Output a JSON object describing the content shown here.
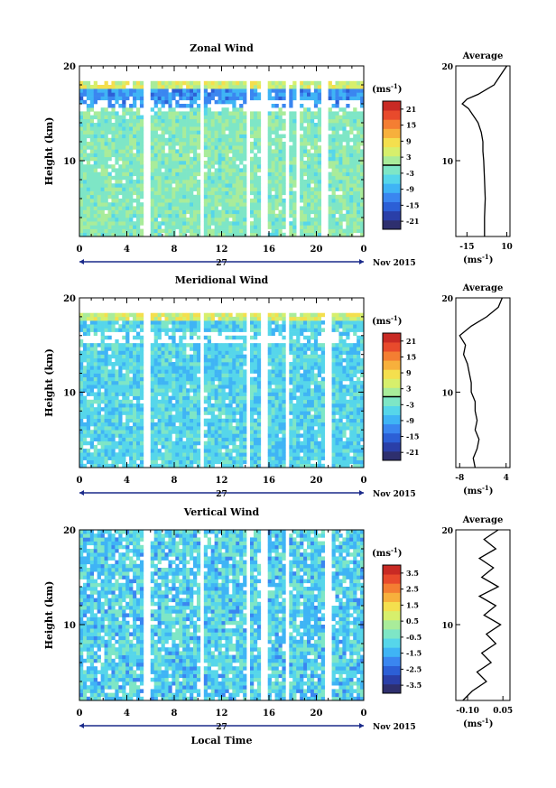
{
  "chart_data": [
    {
      "type": "heatmap",
      "title": "Zonal Wind",
      "ylabel": "Height (km)",
      "ylim": [
        2,
        20
      ],
      "y_ticks": [
        "10",
        "20"
      ],
      "xlim": [
        0,
        24
      ],
      "x_ticks": [
        "0",
        "4",
        "8",
        "12",
        "16",
        "20",
        "0"
      ],
      "date_label": "27",
      "month_label": "Nov 2015",
      "colorbar": {
        "unit": "(ms",
        "unit_sup": "-1",
        "unit_close": ")",
        "ticks": [
          "21",
          "15",
          "9",
          "3",
          "-3",
          "-9",
          "-15",
          "-21"
        ],
        "range": [
          -24,
          24
        ]
      },
      "average": {
        "title": "Average",
        "xlabel": "(ms",
        "xlabel_sup": "-1",
        "xlabel_close": ")",
        "x_ticks": [
          "-15",
          "10"
        ],
        "y_ticks": [
          "10",
          "20"
        ],
        "xlim": [
          -22,
          12
        ],
        "profile": [
          {
            "h": 2,
            "v": -4
          },
          {
            "h": 4,
            "v": -4
          },
          {
            "h": 6,
            "v": -3.5
          },
          {
            "h": 8,
            "v": -4
          },
          {
            "h": 10,
            "v": -4.5
          },
          {
            "h": 11,
            "v": -5
          },
          {
            "h": 12,
            "v": -5
          },
          {
            "h": 13,
            "v": -6
          },
          {
            "h": 14,
            "v": -8
          },
          {
            "h": 14.5,
            "v": -10
          },
          {
            "h": 15,
            "v": -12
          },
          {
            "h": 15.5,
            "v": -14
          },
          {
            "h": 16,
            "v": -18
          },
          {
            "h": 16.5,
            "v": -15
          },
          {
            "h": 17,
            "v": -8
          },
          {
            "h": 18,
            "v": 2
          },
          {
            "h": 19,
            "v": 6
          },
          {
            "h": 20,
            "v": 10
          }
        ]
      }
    },
    {
      "type": "heatmap",
      "title": "Meridional Wind",
      "ylabel": "Height (km)",
      "ylim": [
        2,
        20
      ],
      "y_ticks": [
        "10",
        "20"
      ],
      "xlim": [
        0,
        24
      ],
      "x_ticks": [
        "0",
        "4",
        "8",
        "12",
        "16",
        "20",
        "0"
      ],
      "date_label": "27",
      "month_label": "Nov 2015",
      "colorbar": {
        "unit": "(ms",
        "unit_sup": "-1",
        "unit_close": ")",
        "ticks": [
          "21",
          "15",
          "9",
          "3",
          "-3",
          "-9",
          "-15",
          "-21"
        ],
        "range": [
          -24,
          24
        ]
      },
      "average": {
        "title": "Average",
        "xlabel": "(ms",
        "xlabel_sup": "-1",
        "xlabel_close": ")",
        "x_ticks": [
          "-8",
          "4"
        ],
        "y_ticks": [
          "10",
          "20"
        ],
        "xlim": [
          -9,
          5
        ],
        "profile": [
          {
            "h": 2,
            "v": -4
          },
          {
            "h": 3,
            "v": -4.5
          },
          {
            "h": 4,
            "v": -3.5
          },
          {
            "h": 5,
            "v": -3
          },
          {
            "h": 6,
            "v": -4
          },
          {
            "h": 7,
            "v": -3.5
          },
          {
            "h": 8,
            "v": -4
          },
          {
            "h": 9,
            "v": -4
          },
          {
            "h": 10,
            "v": -5
          },
          {
            "h": 11,
            "v": -5
          },
          {
            "h": 12,
            "v": -5.5
          },
          {
            "h": 13,
            "v": -6
          },
          {
            "h": 14,
            "v": -7
          },
          {
            "h": 15,
            "v": -6.5
          },
          {
            "h": 16,
            "v": -8
          },
          {
            "h": 17,
            "v": -5
          },
          {
            "h": 18,
            "v": -1
          },
          {
            "h": 19,
            "v": 2
          },
          {
            "h": 20,
            "v": 3
          }
        ]
      }
    },
    {
      "type": "heatmap",
      "title": "Vertical Wind",
      "ylabel": "Height (km)",
      "xlabel": "Local Time",
      "ylim": [
        2,
        20
      ],
      "y_ticks": [
        "10",
        "20"
      ],
      "xlim": [
        0,
        24
      ],
      "x_ticks": [
        "0",
        "4",
        "8",
        "12",
        "16",
        "20",
        "0"
      ],
      "date_label": "27",
      "month_label": "Nov 2015",
      "colorbar": {
        "unit": "(ms",
        "unit_sup": "-1",
        "unit_close": ")",
        "ticks": [
          "3.5",
          "2.5",
          "1.5",
          "0.5",
          "-0.5",
          "-1.5",
          "-2.5",
          "-3.5"
        ],
        "range": [
          -4,
          4
        ]
      },
      "average": {
        "title": "Average",
        "xlabel": "(ms",
        "xlabel_sup": "-1",
        "xlabel_close": ")",
        "x_ticks": [
          "-0.10",
          "0.05"
        ],
        "y_ticks": [
          "10",
          "20"
        ],
        "xlim": [
          -0.15,
          0.08
        ],
        "profile": [
          {
            "h": 2,
            "v": -0.12
          },
          {
            "h": 3,
            "v": -0.08
          },
          {
            "h": 4,
            "v": -0.02
          },
          {
            "h": 5,
            "v": -0.06
          },
          {
            "h": 6,
            "v": 0.0
          },
          {
            "h": 7,
            "v": -0.04
          },
          {
            "h": 8,
            "v": 0.02
          },
          {
            "h": 9,
            "v": -0.02
          },
          {
            "h": 10,
            "v": 0.04
          },
          {
            "h": 11,
            "v": -0.03
          },
          {
            "h": 12,
            "v": 0.02
          },
          {
            "h": 13,
            "v": -0.05
          },
          {
            "h": 14,
            "v": 0.03
          },
          {
            "h": 15,
            "v": -0.04
          },
          {
            "h": 16,
            "v": 0.01
          },
          {
            "h": 17,
            "v": -0.05
          },
          {
            "h": 18,
            "v": 0.02
          },
          {
            "h": 19,
            "v": -0.03
          },
          {
            "h": 20,
            "v": 0.03
          }
        ]
      }
    }
  ]
}
